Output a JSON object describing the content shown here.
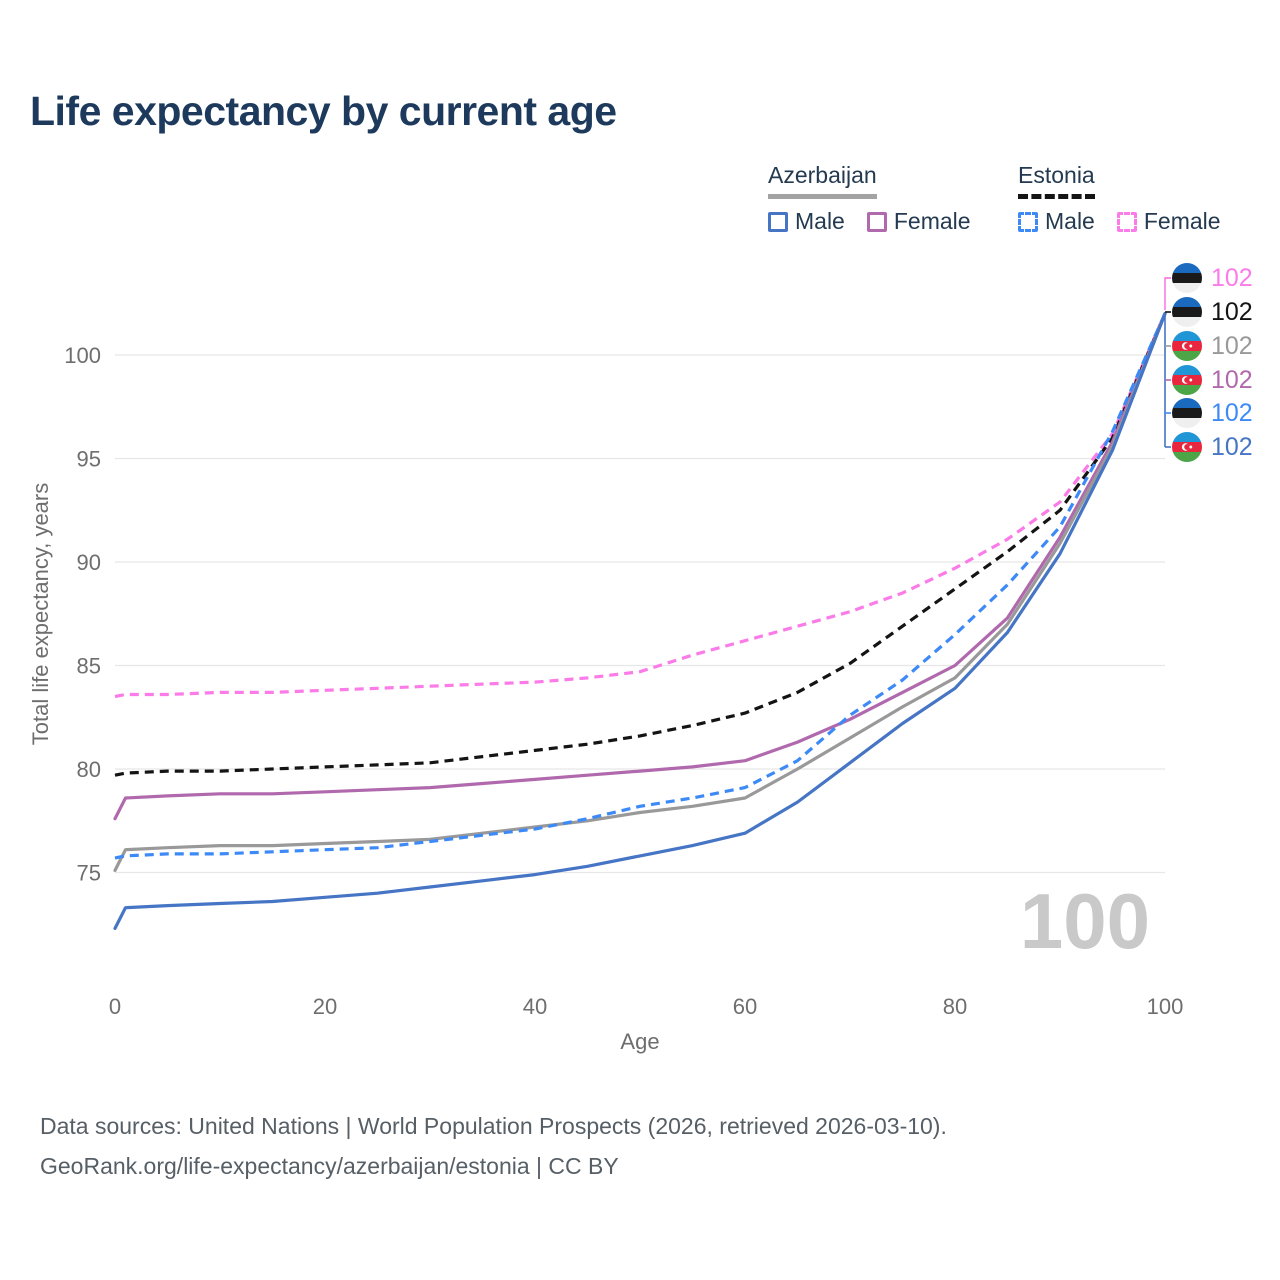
{
  "page": {
    "title": "Life expectancy by current age"
  },
  "legend": {
    "groups": [
      {
        "country": "Azerbaijan",
        "line_style": "solid",
        "underline_color": "#a3a3a3",
        "items": [
          {
            "label": "Male",
            "color": "#4575c4",
            "dashed": false
          },
          {
            "label": "Female",
            "color": "#b069ad",
            "dashed": false
          }
        ]
      },
      {
        "country": "Estonia",
        "line_style": "dashed",
        "underline_color": "#141414",
        "items": [
          {
            "label": "Male",
            "color": "#3d8af7",
            "dashed": true
          },
          {
            "label": "Female",
            "color": "#fb7ce8",
            "dashed": true
          }
        ]
      }
    ]
  },
  "chart_data": {
    "type": "line",
    "title": "Life expectancy by current age",
    "xlabel": "Age",
    "ylabel": "Total life expectancy, years",
    "xlim": [
      0,
      100
    ],
    "ylim": [
      71.5,
      103
    ],
    "xticks": [
      0,
      20,
      40,
      60,
      80,
      100
    ],
    "yticks": [
      75,
      80,
      85,
      90,
      95,
      100
    ],
    "grid": "horizontal",
    "legend_position": "top-right",
    "x": [
      0,
      1,
      5,
      10,
      15,
      20,
      25,
      30,
      35,
      40,
      45,
      50,
      55,
      60,
      65,
      70,
      75,
      80,
      85,
      90,
      95,
      100
    ],
    "series": [
      {
        "name": "Estonia Female",
        "country": "Estonia",
        "sex": "Female",
        "color": "#fb7ce8",
        "dashed": true,
        "values": [
          83.5,
          83.6,
          83.6,
          83.7,
          83.7,
          83.8,
          83.9,
          84.0,
          84.1,
          84.2,
          84.4,
          84.7,
          85.5,
          86.2,
          86.9,
          87.6,
          88.5,
          89.7,
          91.1,
          92.9,
          96.2,
          102
        ]
      },
      {
        "name": "Estonia",
        "country": "Estonia",
        "sex": "Total",
        "color": "#141414",
        "dashed": true,
        "values": [
          79.7,
          79.8,
          79.9,
          79.9,
          80.0,
          80.1,
          80.2,
          80.3,
          80.6,
          80.9,
          81.2,
          81.6,
          82.1,
          82.7,
          83.7,
          85.1,
          86.9,
          88.7,
          90.5,
          92.5,
          96.0,
          102
        ]
      },
      {
        "name": "Azerbaijan Female",
        "country": "Azerbaijan",
        "sex": "Female",
        "color": "#b069ad",
        "dashed": false,
        "values": [
          77.6,
          78.6,
          78.7,
          78.8,
          78.8,
          78.9,
          79.0,
          79.1,
          79.3,
          79.5,
          79.7,
          79.9,
          80.1,
          80.4,
          81.3,
          82.4,
          83.7,
          85.0,
          87.3,
          91.2,
          95.8,
          102
        ]
      },
      {
        "name": "Azerbaijan",
        "country": "Azerbaijan",
        "sex": "Total",
        "color": "#999999",
        "dashed": false,
        "values": [
          75.1,
          76.1,
          76.2,
          76.3,
          76.3,
          76.4,
          76.5,
          76.6,
          76.9,
          77.2,
          77.5,
          77.9,
          78.2,
          78.6,
          80.0,
          81.5,
          83.0,
          84.4,
          87.0,
          90.9,
          95.6,
          102
        ]
      },
      {
        "name": "Estonia Male",
        "country": "Estonia",
        "sex": "Male",
        "color": "#3d8af7",
        "dashed": true,
        "values": [
          75.7,
          75.8,
          75.9,
          75.9,
          76.0,
          76.1,
          76.2,
          76.5,
          76.8,
          77.1,
          77.6,
          78.2,
          78.6,
          79.1,
          80.4,
          82.6,
          84.3,
          86.5,
          88.9,
          91.7,
          96.3,
          102
        ]
      },
      {
        "name": "Azerbaijan Male",
        "country": "Azerbaijan",
        "sex": "Male",
        "color": "#4575c4",
        "dashed": false,
        "values": [
          72.3,
          73.3,
          73.4,
          73.5,
          73.6,
          73.8,
          74.0,
          74.3,
          74.6,
          74.9,
          75.3,
          75.8,
          76.3,
          76.9,
          78.4,
          80.3,
          82.2,
          83.9,
          86.6,
          90.4,
          95.4,
          102
        ]
      }
    ],
    "end_labels": [
      {
        "series": "Estonia Female",
        "flag": "estonia",
        "value": "102",
        "color": "#fb7ce8"
      },
      {
        "series": "Estonia",
        "flag": "estonia",
        "value": "102",
        "color": "#141414"
      },
      {
        "series": "Azerbaijan",
        "flag": "azerbaijan",
        "value": "102",
        "color": "#999999"
      },
      {
        "series": "Azerbaijan Female",
        "flag": "azerbaijan",
        "value": "102",
        "color": "#b069ad"
      },
      {
        "series": "Estonia Male",
        "flag": "estonia",
        "value": "102",
        "color": "#3d8af7"
      },
      {
        "series": "Azerbaijan Male",
        "flag": "azerbaijan",
        "value": "102",
        "color": "#4575c4"
      }
    ],
    "watermark_age": "100"
  },
  "colors": {
    "title": "#1d3a5c",
    "axis_text": "#6e6e6e",
    "grid": "#e7e7e7",
    "watermark": "#c9c9c9",
    "footer_text": "#575f66"
  },
  "footer": {
    "line1": "Data sources: United Nations | World Population Prospects (2026, retrieved 2026-03-10).",
    "line2": "GeoRank.org/life-expectancy/azerbaijan/estonia | CC BY"
  }
}
